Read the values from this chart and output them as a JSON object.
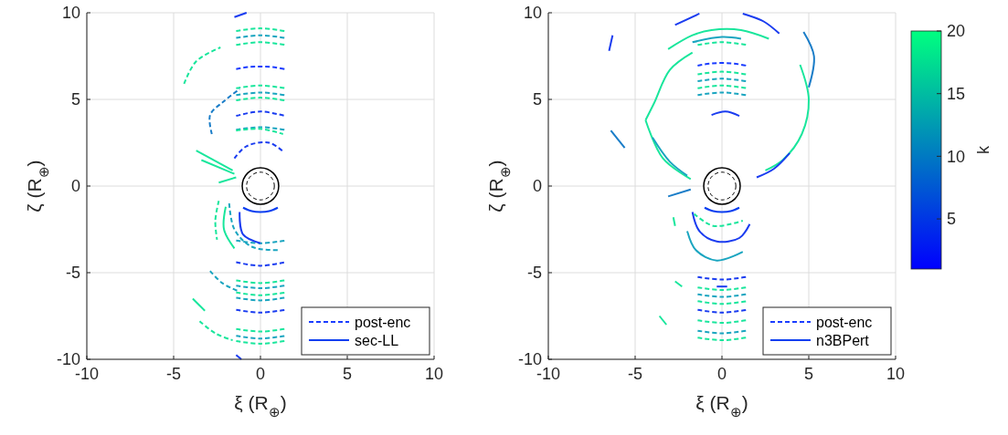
{
  "chart_data": [
    {
      "type": "line",
      "xlim": [
        -10,
        10
      ],
      "ylim": [
        -10,
        10
      ],
      "xticks": [
        -10,
        -5,
        0,
        5,
        10
      ],
      "yticks": [
        -10,
        -5,
        0,
        5,
        10
      ],
      "grid": true,
      "legend": "bottom right",
      "xlabel": "ξ (R$_{⊕}$)",
      "ylabel": "ζ (R$_{⊕}$)",
      "series": [
        {
          "name": "post-enc",
          "color": "#1a3cff",
          "line_style": "dashed",
          "x": [
            -1.4,
            -0.7,
            0,
            0.7,
            1.4
          ],
          "values": [
            6.75,
            6.87,
            6.9,
            6.87,
            6.75
          ]
        },
        {
          "name": "sec-LL",
          "color": "#0a3ef0",
          "line_style": "solid",
          "x": [
            -1,
            -0.5,
            0,
            0.5,
            1
          ],
          "values": [
            -1.25,
            -1.45,
            -1.5,
            -1.45,
            -1.25
          ]
        },
        {
          "color": "#19e69c",
          "line_style": "dashed",
          "x": [
            -1.4,
            0,
            1.4
          ],
          "values": [
            8.95,
            9.1,
            8.95
          ]
        },
        {
          "color": "#1aa5c0",
          "line_style": "dashed",
          "x": [
            -1.4,
            0,
            1.4
          ],
          "values": [
            8.55,
            8.7,
            8.55
          ]
        },
        {
          "color": "#19e69c",
          "line_style": "dashed",
          "x": [
            -1.4,
            0,
            1.4
          ],
          "values": [
            8.15,
            8.3,
            8.15
          ]
        },
        {
          "color": "#19e69c",
          "line_style": "dashed",
          "x": [
            -1.4,
            0,
            1.4
          ],
          "values": [
            5.65,
            5.8,
            5.65
          ]
        },
        {
          "color": "#1aa5c0",
          "line_style": "dashed",
          "x": [
            -1.4,
            0,
            1.4
          ],
          "values": [
            5.25,
            5.4,
            5.25
          ]
        },
        {
          "color": "#19e69c",
          "line_style": "dashed",
          "x": [
            -1.4,
            0,
            1.4
          ],
          "values": [
            4.95,
            5.1,
            4.95
          ]
        },
        {
          "color": "#1a3cf0",
          "line_style": "dashed",
          "x": [
            -1.4,
            0,
            1.4
          ],
          "values": [
            4.05,
            4.3,
            4.05
          ]
        },
        {
          "color": "#1aa5c0",
          "line_style": "dashed",
          "x": [
            -1.4,
            0,
            1.4
          ],
          "values": [
            3.25,
            3.4,
            3.25
          ]
        },
        {
          "color": "#19e69c",
          "line_style": "dashed",
          "x": [
            -1.4,
            0,
            1.4
          ],
          "values": [
            -8.95,
            -9.1,
            -8.95
          ]
        },
        {
          "color": "#1aa5c0",
          "line_style": "dashed",
          "x": [
            -1.4,
            0,
            1.4
          ],
          "values": [
            -8.65,
            -8.8,
            -8.65
          ]
        },
        {
          "color": "#19e69c",
          "line_style": "dashed",
          "x": [
            -1.4,
            0,
            1.4
          ],
          "values": [
            -8.25,
            -8.4,
            -8.25
          ]
        },
        {
          "color": "#1a3cf0",
          "line_style": "dashed",
          "x": [
            -1.4,
            0,
            1.4
          ],
          "values": [
            -7.15,
            -7.3,
            -7.15
          ]
        },
        {
          "color": "#1aa5c0",
          "line_style": "dashed",
          "x": [
            -1.4,
            0,
            1.4
          ],
          "values": [
            -6.45,
            -6.6,
            -6.45
          ]
        },
        {
          "color": "#19e69c",
          "line_style": "dashed",
          "x": [
            -1.4,
            0,
            1.4
          ],
          "values": [
            -6.15,
            -6.3,
            -6.15
          ]
        },
        {
          "color": "#1aa5c0",
          "line_style": "dashed",
          "x": [
            -1.4,
            0,
            1.4
          ],
          "values": [
            -5.75,
            -5.9,
            -5.75
          ]
        },
        {
          "color": "#19e69c",
          "line_style": "dashed",
          "x": [
            -1.4,
            0,
            1.4
          ],
          "values": [
            -5.45,
            -5.6,
            -5.45
          ]
        },
        {
          "color": "#1a3cf0",
          "line_style": "dashed",
          "x": [
            -1.4,
            0,
            1.4
          ],
          "values": [
            -4.4,
            -4.6,
            -4.4
          ]
        },
        {
          "color": "#1aa5c0",
          "line_style": "dashed",
          "x": [
            -1.4,
            0,
            1.4
          ],
          "values": [
            -3.15,
            -3.3,
            -3.15
          ]
        },
        {
          "color": "#19e69c",
          "line_style": "dashed",
          "x": [
            -4.4,
            -3.7,
            -2.3
          ],
          "values": [
            5.9,
            7.2,
            8.0
          ]
        },
        {
          "color": "#1a7dc8",
          "line_style": "dashed",
          "x": [
            -2.8,
            -2.9,
            -2.1,
            -1.2
          ],
          "values": [
            3.0,
            4.1,
            4.9,
            5.6
          ]
        },
        {
          "color": "#1a3cf0",
          "line_style": "solid",
          "x": [
            -1.5,
            -0.8
          ],
          "values": [
            9.75,
            10
          ]
        },
        {
          "color": "#19e69c",
          "line_style": "solid",
          "x": [
            -3.7,
            -1.6
          ],
          "values": [
            2.05,
            0.9
          ]
        },
        {
          "color": "#19e69c",
          "line_style": "solid",
          "x": [
            -3.4,
            -1.5
          ],
          "values": [
            1.5,
            0.7
          ]
        },
        {
          "color": "#19e69c",
          "line_style": "solid",
          "x": [
            -2.4,
            -1.4
          ],
          "values": [
            0.2,
            0.5
          ]
        },
        {
          "color": "#19e69c",
          "line_style": "dashed",
          "x": [
            -2.4,
            -2.6,
            -2.5
          ],
          "values": [
            -0.85,
            -2.0,
            -3.1
          ]
        },
        {
          "color": "#1aa5c0",
          "line_style": "dashed",
          "x": [
            -2.9,
            -2.2,
            -1.2
          ],
          "values": [
            -4.9,
            -5.6,
            -6.1
          ]
        },
        {
          "color": "#19e69c",
          "line_style": "dashed",
          "x": [
            -3.5,
            -2.6,
            -1.6
          ],
          "values": [
            -7.8,
            -8.5,
            -8.9
          ]
        },
        {
          "color": "#19e69c",
          "line_style": "solid",
          "x": [
            -3.9,
            -3.2
          ],
          "values": [
            -6.5,
            -7.2
          ]
        },
        {
          "color": "#1a3cf0",
          "line_style": "solid",
          "x": [
            -1.4,
            -1.1
          ],
          "values": [
            -9.75,
            -10
          ]
        },
        {
          "color": "#1aa5c0",
          "line_style": "dashed",
          "x": [
            -1.8,
            -1.5,
            -0.5,
            1.0
          ],
          "values": [
            -1.0,
            -2.5,
            -3.5,
            -3.7
          ]
        },
        {
          "color": "#1a3cf0",
          "line_style": "solid",
          "x": [
            -1.2,
            -1.0,
            0.0
          ],
          "values": [
            -1.5,
            -2.8,
            -3.3
          ]
        },
        {
          "color": "#19e69c",
          "line_style": "solid",
          "x": [
            -2.0,
            -2.1,
            -1.5
          ],
          "values": [
            -1.2,
            -2.5,
            -3.6
          ]
        },
        {
          "color": "#1a3cf0",
          "line_style": "dashed",
          "x": [
            -1.5,
            -0.8,
            0.5,
            1.3
          ],
          "values": [
            1.6,
            2.3,
            2.5,
            2.0
          ]
        },
        {
          "color": "#19e69c",
          "line_style": "dashed",
          "x": [
            -1.4,
            0,
            1.3
          ],
          "values": [
            3.2,
            3.3,
            3.0
          ]
        }
      ]
    },
    {
      "type": "line",
      "xlim": [
        -10,
        10
      ],
      "ylim": [
        -10,
        10
      ],
      "xticks": [
        -10,
        -5,
        0,
        5,
        10
      ],
      "yticks": [
        -10,
        -5,
        0,
        5,
        10
      ],
      "grid": true,
      "legend": "bottom right",
      "xlabel": "ξ (R$_{⊕}$)",
      "ylabel": "ζ (R$_{⊕}$)",
      "clabel": "k",
      "clim": [
        1,
        20
      ],
      "cticks": [
        5,
        10,
        15,
        20
      ],
      "series": [
        {
          "name": "post-enc",
          "color": "#1a3cff",
          "line_style": "dashed",
          "x": [
            -1.4,
            -0.7,
            0,
            0.7,
            1.4
          ],
          "values": [
            6.95,
            7.07,
            7.1,
            7.07,
            6.95
          ]
        },
        {
          "name": "n3BPert",
          "color": "#0a3ef0",
          "line_style": "solid",
          "x": [
            -1,
            -0.5,
            0,
            0.5,
            1
          ],
          "values": [
            -1.25,
            -1.45,
            -1.5,
            -1.45,
            -1.25
          ]
        },
        {
          "color": "#19e69c",
          "line_style": "dashed",
          "x": [
            -1.4,
            0,
            1.4
          ],
          "values": [
            8.15,
            8.3,
            8.15
          ]
        },
        {
          "color": "#19e69c",
          "line_style": "dashed",
          "x": [
            -1.4,
            0,
            1.4
          ],
          "values": [
            6.45,
            6.6,
            6.45
          ]
        },
        {
          "color": "#1aa5c0",
          "line_style": "dashed",
          "x": [
            -1.4,
            0,
            1.4
          ],
          "values": [
            6.05,
            6.2,
            6.05
          ]
        },
        {
          "color": "#19e69c",
          "line_style": "dashed",
          "x": [
            -1.4,
            0,
            1.4
          ],
          "values": [
            5.65,
            5.8,
            5.65
          ]
        },
        {
          "color": "#1aa5c0",
          "line_style": "dashed",
          "x": [
            -1.4,
            0,
            1.4
          ],
          "values": [
            5.25,
            5.4,
            5.25
          ]
        },
        {
          "color": "#1a3cf0",
          "line_style": "solid",
          "x": [
            -0.6,
            0.2,
            1.0
          ],
          "values": [
            4.1,
            4.3,
            4.05
          ]
        },
        {
          "color": "#1a3cf0",
          "line_style": "dashed",
          "x": [
            -1.4,
            0,
            1.4
          ],
          "values": [
            -5.25,
            -5.4,
            -5.25
          ]
        },
        {
          "color": "#19e69c",
          "line_style": "dashed",
          "x": [
            -1.4,
            0,
            1.4
          ],
          "values": [
            -5.85,
            -6.0,
            -5.85
          ]
        },
        {
          "color": "#1aa5c0",
          "line_style": "dashed",
          "x": [
            -1.4,
            0,
            1.4
          ],
          "values": [
            -6.25,
            -6.4,
            -6.25
          ]
        },
        {
          "color": "#19e69c",
          "line_style": "dashed",
          "x": [
            -1.4,
            0,
            1.4
          ],
          "values": [
            -6.65,
            -6.8,
            -6.65
          ]
        },
        {
          "color": "#1a3cf0",
          "line_style": "dashed",
          "x": [
            -1.4,
            0,
            1.4
          ],
          "values": [
            -7.15,
            -7.3,
            -7.15
          ]
        },
        {
          "color": "#19e69c",
          "line_style": "dashed",
          "x": [
            -1.4,
            0,
            1.4
          ],
          "values": [
            -7.75,
            -7.9,
            -7.75
          ]
        },
        {
          "color": "#1aa5c0",
          "line_style": "dashed",
          "x": [
            -1.4,
            0,
            1.4
          ],
          "values": [
            -8.35,
            -8.5,
            -8.35
          ]
        },
        {
          "color": "#19e69c",
          "line_style": "dashed",
          "x": [
            -1.4,
            0,
            1.4
          ],
          "values": [
            -8.75,
            -8.9,
            -8.75
          ]
        },
        {
          "color": "#1a3cf0",
          "line_style": "solid",
          "x": [
            -0.3,
            0.3
          ],
          "values": [
            -5.8,
            -5.8
          ]
        },
        {
          "color": "#19e69c",
          "line_style": "solid",
          "x": [
            -3.1,
            -1.7,
            -0.6,
            1.1,
            2.7
          ],
          "values": [
            7.9,
            8.7,
            9.0,
            9.0,
            8.5
          ]
        },
        {
          "color": "#1aa5c0",
          "line_style": "solid",
          "x": [
            -1.7,
            0,
            1.1
          ],
          "values": [
            8.3,
            8.6,
            8.5
          ]
        },
        {
          "color": "#1a3cf0",
          "line_style": "solid",
          "x": [
            -2.7,
            -1.3
          ],
          "values": [
            9.3,
            9.95
          ]
        },
        {
          "color": "#1a3cf0",
          "line_style": "solid",
          "x": [
            1.2,
            2.4,
            3.3
          ],
          "values": [
            9.95,
            9.5,
            8.8
          ]
        },
        {
          "color": "#19e69c",
          "line_style": "solid",
          "x": [
            -1.7,
            -3.0,
            -3.9,
            -4.4
          ],
          "values": [
            7.7,
            6.7,
            4.8,
            3.8
          ]
        },
        {
          "color": "#19e69c",
          "line_style": "solid",
          "x": [
            -4.4,
            -3.4,
            -1.8
          ],
          "values": [
            3.8,
            1.6,
            0.4
          ]
        },
        {
          "color": "#1aa5c0",
          "line_style": "solid",
          "x": [
            -4.0,
            -3.0,
            -2.0
          ],
          "values": [
            2.8,
            1.4,
            0.6
          ]
        },
        {
          "color": "#1a3cf0",
          "line_style": "solid",
          "x": [
            -6.3,
            -6.5
          ],
          "values": [
            8.7,
            7.8
          ]
        },
        {
          "color": "#1a7dc8",
          "line_style": "solid",
          "x": [
            -6.4,
            -5.6
          ],
          "values": [
            3.2,
            2.2
          ]
        },
        {
          "color": "#19e69c",
          "line_style": "solid",
          "x": [
            4.5,
            5.0,
            4.6,
            3.5,
            2.5
          ],
          "values": [
            7.0,
            5.0,
            3.0,
            1.5,
            0.9
          ]
        },
        {
          "color": "#1a7dc8",
          "line_style": "solid",
          "x": [
            4.7,
            5.3,
            5.0
          ],
          "values": [
            8.9,
            7.5,
            5.7
          ]
        },
        {
          "color": "#1a3cf0",
          "line_style": "solid",
          "x": [
            2.0,
            3.0,
            3.9
          ],
          "values": [
            0.5,
            1.0,
            1.9
          ]
        },
        {
          "color": "#1a7dc8",
          "line_style": "solid",
          "x": [
            -3.1,
            -1.8
          ],
          "values": [
            -0.6,
            -0.2
          ]
        },
        {
          "color": "#19e69c",
          "line_style": "solid",
          "x": [
            -2.7,
            -2.3
          ],
          "values": [
            -5.5,
            -5.8
          ]
        },
        {
          "color": "#19e69c",
          "line_style": "solid",
          "x": [
            -3.6,
            -3.2
          ],
          "values": [
            -7.5,
            -8.0
          ]
        },
        {
          "color": "#19e69c",
          "line_style": "solid",
          "x": [
            -2.8,
            -2.7
          ],
          "values": [
            -1.8,
            -2.3
          ]
        },
        {
          "color": "#1a3cf0",
          "line_style": "solid",
          "x": [
            -1.7,
            -1.3,
            -0.3,
            1.0,
            1.6
          ],
          "values": [
            -1.5,
            -2.6,
            -3.2,
            -3.0,
            -2.2
          ]
        },
        {
          "color": "#1aa5c0",
          "line_style": "solid",
          "x": [
            -2.0,
            -1.5,
            -0.3,
            1.2
          ],
          "values": [
            -2.6,
            -3.7,
            -4.3,
            -3.8
          ]
        },
        {
          "color": "#19e69c",
          "line_style": "dashed",
          "x": [
            -1.6,
            -0.5,
            1.2
          ],
          "values": [
            -1.6,
            -2.3,
            -2.0
          ]
        }
      ]
    }
  ]
}
